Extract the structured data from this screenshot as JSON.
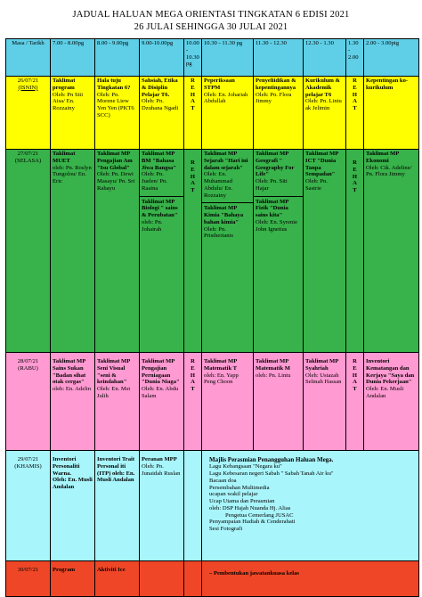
{
  "title_line1": "JADUAL HALUAN MEGA ORIENTASI TINGKATAN 6 EDISI 2021",
  "title_line2": "26 JULAI SEHINGGA 30 JULAI 2021",
  "headers": {
    "masa_tarikh": "Masa / Tarikh",
    "slot1": "7.00 - 8.00pg",
    "slot2": "8.00 - 9.00pg",
    "slot3": "9.00-10.00pg",
    "slot4": "10.00 - 10.30 pg",
    "slot5": "10.30 - 11.30 pg",
    "slot6": "11.30 - 12.30",
    "slot7": "12.30 - 1.30",
    "slot8": "1.30 - 2.00",
    "slot9": "2.00 - 3.00ptg"
  },
  "break_letters": "REHAT",
  "rows": {
    "mon": {
      "date": "26/07/21",
      "day": "(ISNIN)",
      "c1": {
        "t": "Taklimat program",
        "b": "Oleh: Pn Siti Aisa/ En. Rozzainy"
      },
      "c2": {
        "t": "Hala tuju Tingkatan 6?",
        "b": "Oleh: Pn. Morene Liew Yen Yen (PKT6 SCC)"
      },
      "c3": {
        "t": "Sahsiah, Etika & Disiplin Pelajar T6.",
        "b": "Oleh: Pn. Dzuhana Ngadi"
      },
      "c5": {
        "t": "Peperiksaan STPM",
        "b": "Oleh: En. Johariah Abdullah"
      },
      "c6": {
        "t": "Penyeliidikan & kepentingannya",
        "b": "Oleh: Pn. Flora Jimmy"
      },
      "c7": {
        "t": "Kurikulum & Akademik pelajar T6",
        "b": "Oleh: Pn. Lintu ak Jelimin"
      },
      "c9": {
        "t": "Kepentingan ko-kurikulum",
        "b": ""
      }
    },
    "tue": {
      "date": "27/07/21",
      "day": "(SELASA)",
      "c1": {
        "t": "Taklimat MUET",
        "b": "oleh: Pn. Roslyn Tungolou/ En. Eric"
      },
      "c2": {
        "t": "Taklimat MP Pengajian Am \"Isu Global\"",
        "b": "Oleh: Pn. Dewi Masayu/ Pn. Sri Rahayu"
      },
      "c3a": {
        "t": "Taklimat MP BM \"Bahasa Jiwa Bangsa\"",
        "b": "Oleh: Pn. Juelen/ Pn. Raaina"
      },
      "c3b": {
        "t": "Taklimat MP Biologi \" sains & Perubatan\"",
        "b": "oleh: Pn. Johairah"
      },
      "c5a": {
        "t": "Taklimat MP Sejarah \"Hari ini dalam sejarah\"",
        "b": "Oleh: En. Muhammad Abdulu/ En. Rozzainy"
      },
      "c5b": {
        "t": "Taklimat MP Kimia \"Bahaya bahan kimia\"",
        "b": "Oleh: Pn. Pristherianis"
      },
      "c6a": {
        "t": "Taklimat MP Geografi \" Geography For Life\"",
        "b": "Oleh: Pn. Siti Hajar"
      },
      "c6b": {
        "t": "Taklimat MP Fizik \"Dunia sains kita\"",
        "b": "Oleh: En. Syrenie John Ignetius"
      },
      "c7": {
        "t": "Taklimat MP ICT \"Dunia Tanpa Sempadan\"",
        "b": "Oleh: Pn. Sastrie"
      },
      "c9": {
        "t": "Taklimat MP Ekonomi",
        "b": "Oleh: Cik. Adeline/ Pn. Flora Jimmy"
      }
    },
    "wed": {
      "date": "28/07/21",
      "day": "(RABU)",
      "c1": {
        "t": "Taklimat MP Sains Sukan \"Badan sihat otak cergas\"",
        "b": "oleh: En. Adzlin"
      },
      "c2": {
        "t": "Taklimat MP Seni Visual \"seni & keindahan\"",
        "b": "Oleh: En. Mst Julih"
      },
      "c3": {
        "t": "Taklimat MP Pengajian Perniagaan \"Dunia Niaga\"",
        "b": "Oleh: En. Abdu Salam"
      },
      "c5": {
        "t": "Taklimat MP Matematik T",
        "b": "oleh: En. Yapp Peng Choon"
      },
      "c6": {
        "t": "Taklimat MP Matematik M",
        "b": "oleh: Pn. Lintu"
      },
      "c7": {
        "t": "Taklimat MP Syahriah",
        "b": "Oleh: Ustazah Selmah Hassan"
      },
      "c9": {
        "t": "Inventori Kematangan dan Kerjaya \"Saya dan Dunia Pekerjaan\"",
        "b": "Oleh: En. Musli Andalan"
      }
    },
    "thu": {
      "date": "29/07/21",
      "day": "(KHAMIS)",
      "c1": {
        "t": "Inventori Personaliti Warna.",
        "b": "Oleh: En. Musli Andalan"
      },
      "c2": {
        "t": "Inventori Trait Personal iti (ITP) oleh: En. Musli Andalan",
        "b": ""
      },
      "c3": {
        "t": "Peranan MPP",
        "b": "Oleh: Pn. Junaidah Ruslan"
      },
      "ceremony_title": "Majlis Perasmian Penangguhan Haluan Mega.",
      "ceremony_items": [
        "Lagu Kebangsaan \"Negara ku\"",
        "Lagu Kebesaran negeri Sabah \" Sabah Tanah Air ku\"",
        "Bacaan doa",
        "Persembahan Multimedia",
        "ucapan wakil pelajar",
        "Ucap Utama dan Perasmian",
        "oleh: DSP Hajah Nuanda Hj. Alias",
        "Pengetua Cemerlang JUSAC",
        "Penyampaian Hadiah & Cenderahati",
        "Sesi Fotografi"
      ]
    },
    "fri": {
      "date": "30/07/21",
      "c1": "Program",
      "c2": "Aktiviti Ice",
      "c5": "– Pembentukan jawatankuasa kelas"
    }
  }
}
